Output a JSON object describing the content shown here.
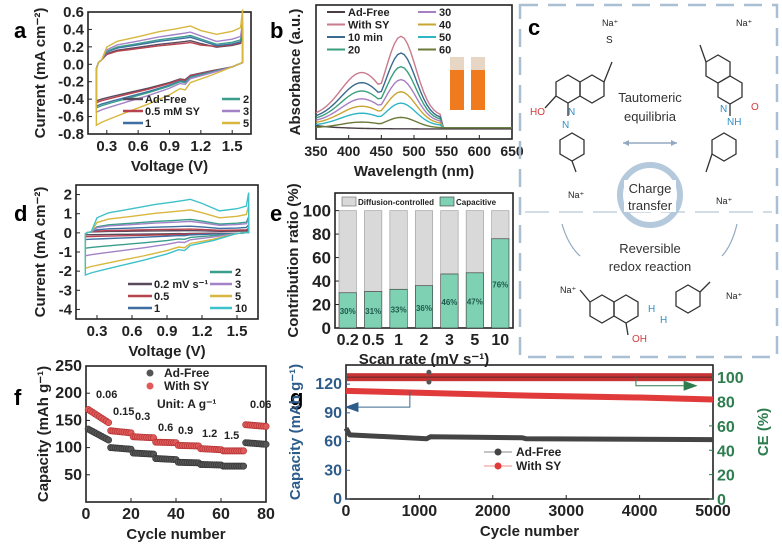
{
  "panels": {
    "a": {
      "label": "a"
    },
    "b": {
      "label": "b"
    },
    "c": {
      "label": "c"
    },
    "d": {
      "label": "d"
    },
    "e": {
      "label": "e"
    },
    "f": {
      "label": "f"
    },
    "g": {
      "label": "g"
    }
  },
  "chart_data": [
    {
      "id": "a",
      "type": "line",
      "title": "",
      "xlabel": "Voltage (V)",
      "ylabel": "Current (mA cm⁻²)",
      "xlim": [
        0.12,
        1.68
      ],
      "ylim": [
        -0.8,
        0.6
      ],
      "xticks": [
        0.3,
        0.6,
        0.9,
        1.2,
        1.5
      ],
      "xtick_labels": [
        "0.3",
        "0.6",
        "0.9",
        "1.2",
        "1.5"
      ],
      "yticks": [
        -0.8,
        -0.6,
        -0.4,
        -0.2,
        0.0,
        0.2,
        0.4,
        0.6
      ],
      "ytick_labels": [
        "-0.8",
        "-0.6",
        "-0.4",
        "-0.2",
        "0.0",
        "0.2",
        "0.4",
        "0.6"
      ],
      "legend_position": "bottom-right",
      "series": [
        {
          "name": "Ad-Free",
          "color": "#5a4a5e",
          "anodic_peak": 0.27,
          "cathodic_min": -0.42,
          "upper_end": 0.24
        },
        {
          "name": "0.5 mM SY",
          "color": "#b8424e",
          "anodic_peak": 0.25,
          "cathodic_min": -0.44,
          "upper_end": 0.25
        },
        {
          "name": "1",
          "color": "#3d6fa3",
          "anodic_peak": 0.31,
          "cathodic_min": -0.48,
          "upper_end": 0.26
        },
        {
          "name": "2",
          "color": "#3a9e8c",
          "anodic_peak": 0.33,
          "cathodic_min": -0.5,
          "upper_end": 0.28
        },
        {
          "name": "3",
          "color": "#a383c7",
          "anodic_peak": 0.37,
          "cathodic_min": -0.55,
          "upper_end": 0.32
        },
        {
          "name": "5",
          "color": "#d8b73e",
          "anodic_peak": 0.44,
          "cathodic_min": -0.7,
          "upper_end": 0.42
        }
      ]
    },
    {
      "id": "b",
      "type": "line",
      "xlabel": "Wavelength (nm)",
      "ylabel": "Absorbance (a.u.)",
      "xlim": [
        350,
        650
      ],
      "xticks": [
        350,
        400,
        450,
        500,
        550,
        600,
        650
      ],
      "xtick_labels": [
        "350",
        "400",
        "450",
        "500",
        "550",
        "600",
        "650"
      ],
      "yticks": [],
      "legend_position": "top-left",
      "peak_wavelength": 480,
      "series": [
        {
          "name": "Ad-Free",
          "color": "#4a3f47",
          "peak": 0.0,
          "base": 0.09
        },
        {
          "name": "With SY",
          "color": "#c97a8c",
          "peak": 1.0,
          "base": 0.3
        },
        {
          "name": "10 min",
          "color": "#3a6a8e",
          "peak": 0.82,
          "base": 0.26
        },
        {
          "name": "20",
          "color": "#3a9e7e",
          "peak": 0.67,
          "base": 0.23
        },
        {
          "name": "30",
          "color": "#a67fc2",
          "peak": 0.53,
          "base": 0.2
        },
        {
          "name": "40",
          "color": "#c9a532",
          "peak": 0.4,
          "base": 0.17
        },
        {
          "name": "50",
          "color": "#2fb5c4",
          "peak": 0.28,
          "base": 0.14
        },
        {
          "name": "60",
          "color": "#6b7a3a",
          "peak": 0.13,
          "base": 0.1
        }
      ],
      "inset": "two orange vials"
    },
    {
      "id": "d",
      "type": "line",
      "xlabel": "Voltage (V)",
      "ylabel": "Current (mA cm⁻²)",
      "xlim": [
        0.12,
        1.68
      ],
      "ylim": [
        -4.5,
        2.5
      ],
      "xticks": [
        0.3,
        0.6,
        0.9,
        1.2,
        1.5
      ],
      "xtick_labels": [
        "0.3",
        "0.6",
        "0.9",
        "1.2",
        "1.5"
      ],
      "yticks": [
        -4,
        -3,
        -2,
        -1,
        0,
        1,
        2
      ],
      "ytick_labels": [
        "-4",
        "-3",
        "-2",
        "-1",
        "0",
        "1",
        "2"
      ],
      "legend_position": "bottom-right",
      "series": [
        {
          "name": "0.2 mV s⁻¹",
          "color": "#5a4a5e",
          "anodic_peak": 0.12,
          "cathodic_min": -0.1
        },
        {
          "name": "0.5",
          "color": "#b8424e",
          "anodic_peak": 0.2,
          "cathodic_min": -0.2
        },
        {
          "name": "1",
          "color": "#3d6fa3",
          "anodic_peak": 0.35,
          "cathodic_min": -0.35
        },
        {
          "name": "2",
          "color": "#3a9e8c",
          "anodic_peak": 0.7,
          "cathodic_min": -0.8
        },
        {
          "name": "3",
          "color": "#a383c7",
          "anodic_peak": 0.6,
          "cathodic_min": -1.2
        },
        {
          "name": "5",
          "color": "#d8b73e",
          "anodic_peak": 1.2,
          "cathodic_min": -1.85
        },
        {
          "name": "10",
          "color": "#3ec1c9",
          "anodic_peak": 1.75,
          "cathodic_min": -2.2
        }
      ]
    },
    {
      "id": "e",
      "type": "bar",
      "stacked": true,
      "xlabel": "Scan rate (mV s⁻¹)",
      "ylabel": "Contribution ratio (%)",
      "ylim": [
        0,
        115
      ],
      "yticks": [
        0,
        20,
        40,
        60,
        80,
        100
      ],
      "ytick_labels": [
        "0",
        "20",
        "40",
        "60",
        "80",
        "100"
      ],
      "categories": [
        "0.2",
        "0.5",
        "1",
        "2",
        "3",
        "5",
        "10"
      ],
      "legend_position": "top",
      "series": [
        {
          "name": "Capacitive",
          "color": "#7fd1b4",
          "values": [
            30,
            31,
            33,
            36,
            46,
            47,
            76
          ]
        },
        {
          "name": "Diffusion-controlled",
          "color": "#d9d9d9",
          "values": [
            70,
            69,
            67,
            64,
            54,
            53,
            24
          ]
        }
      ],
      "data_labels": [
        "30%",
        "31%",
        "33%",
        "36%",
        "46%",
        "47%",
        "76%"
      ]
    },
    {
      "id": "f",
      "type": "scatter",
      "xlabel": "Cycle number",
      "ylabel": "Capacity (mAh g⁻¹)",
      "xlim": [
        0,
        80
      ],
      "ylim": [
        0,
        250
      ],
      "xticks": [
        0,
        20,
        40,
        60,
        80
      ],
      "xtick_labels": [
        "0",
        "20",
        "40",
        "60",
        "80"
      ],
      "yticks": [
        50,
        100,
        150,
        200,
        250
      ],
      "ytick_labels": [
        "50",
        "100",
        "150",
        "200",
        "250"
      ],
      "legend_position": "top-right",
      "unit_note": "Unit: A g⁻¹",
      "rate_labels": [
        "0.06",
        "0.15",
        "0.3",
        "0.6",
        "0.9",
        "1.2",
        "1.5",
        "0.06"
      ],
      "segments": [
        {
          "rate": "0.06",
          "cycles": [
            1,
            10
          ]
        },
        {
          "rate": "0.15",
          "cycles": [
            11,
            20
          ]
        },
        {
          "rate": "0.3",
          "cycles": [
            21,
            30
          ]
        },
        {
          "rate": "0.6",
          "cycles": [
            31,
            40
          ]
        },
        {
          "rate": "0.9",
          "cycles": [
            41,
            50
          ]
        },
        {
          "rate": "1.2",
          "cycles": [
            51,
            60
          ]
        },
        {
          "rate": "1.5",
          "cycles": [
            61,
            70
          ]
        },
        {
          "rate": "0.06",
          "cycles": [
            71,
            80
          ]
        }
      ],
      "series": [
        {
          "name": "Ad-Free",
          "color": "#555555",
          "segment_start": [
            134,
            100,
            90,
            80,
            73,
            69,
            66,
            109
          ],
          "segment_end": [
            114,
            97,
            88,
            78,
            72,
            68,
            66,
            106
          ]
        },
        {
          "name": "With SY",
          "color": "#e05a5a",
          "segment_start": [
            170,
            131,
            120,
            110,
            104,
            98,
            94,
            142
          ],
          "segment_end": [
            146,
            127,
            118,
            109,
            103,
            96,
            94,
            139
          ]
        }
      ]
    },
    {
      "id": "g",
      "type": "line",
      "xlabel": "Cycle number",
      "ylabel": "Capacity (mAh g⁻¹)",
      "ylabel_right": "CE (%)",
      "xlim": [
        0,
        5000
      ],
      "ylim": [
        0,
        140
      ],
      "ylim_right": [
        0,
        110
      ],
      "xticks": [
        0,
        1000,
        2000,
        3000,
        4000,
        5000
      ],
      "xtick_labels": [
        "0",
        "1000",
        "2000",
        "3000",
        "4000",
        "5000"
      ],
      "yticks": [
        0,
        30,
        60,
        90,
        120
      ],
      "ytick_labels": [
        "0",
        "30",
        "60",
        "90",
        "120"
      ],
      "yticks_right": [
        0,
        20,
        40,
        60,
        80,
        100
      ],
      "ytick_labels_right": [
        "0",
        "20",
        "40",
        "60",
        "80",
        "100"
      ],
      "legend_position": "center",
      "series": [
        {
          "name": "Ad-Free",
          "color": "#444444",
          "capacity_points": [
            [
              0,
              74
            ],
            [
              50,
              67
            ],
            [
              1100,
              63
            ],
            [
              1150,
              65
            ],
            [
              2400,
              64
            ],
            [
              2450,
              63
            ],
            [
              5000,
              62
            ]
          ],
          "ce": 100
        },
        {
          "name": "With SY",
          "color": "#e03a3a",
          "capacity_points": [
            [
              0,
              113
            ],
            [
              1000,
              111
            ],
            [
              2500,
              108
            ],
            [
              4000,
              106
            ],
            [
              5000,
              104
            ]
          ],
          "ce": 100
        }
      ],
      "axis_colors": {
        "left": "#2e5c8a",
        "right": "#2e7d4f"
      }
    }
  ],
  "scheme_c": {
    "tautomer_label_line1": "Tautomeric",
    "tautomer_label_line2": "equilibria",
    "charge_line1": "Charge",
    "charge_line2": "transfer",
    "redox_line1": "Reversible",
    "redox_line2": "redox reaction",
    "na": "Na⁺",
    "o_minus": "O⁻",
    "ho": "HO",
    "oh": "OH",
    "n": "N",
    "nh": "NH",
    "h": "H",
    "s": "S",
    "o": "O"
  }
}
